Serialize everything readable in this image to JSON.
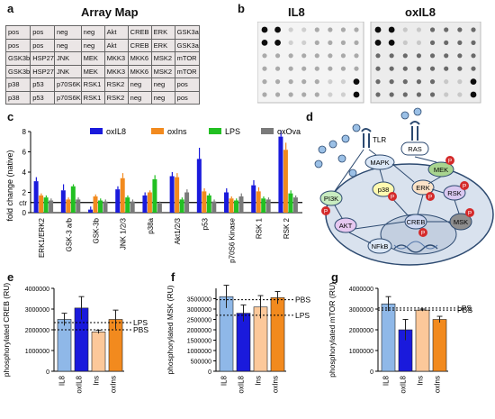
{
  "panels": {
    "a": "a",
    "b": "b",
    "c": "c",
    "d": "d",
    "e": "e",
    "f": "f",
    "g": "g"
  },
  "array_map": {
    "title": "Array Map",
    "rows": [
      [
        "pos",
        "pos",
        "neg",
        "neg",
        "Akt",
        "CREB",
        "ERK",
        "GSK3a"
      ],
      [
        "pos",
        "pos",
        "neg",
        "neg",
        "Akt",
        "CREB",
        "ERK",
        "GSK3a"
      ],
      [
        "GSK3b",
        "HSP27",
        "JNK",
        "MEK",
        "MKK3",
        "MKK6",
        "MSK2",
        "mTOR"
      ],
      [
        "GSK3b",
        "HSP27",
        "JNK",
        "MEK",
        "MKK3",
        "MKK6",
        "MSK2",
        "mTOR"
      ],
      [
        "p38",
        "p53",
        "p70S6K",
        "RSK1",
        "RSK2",
        "neg",
        "neg",
        "pos"
      ],
      [
        "p38",
        "p53",
        "p70S6K",
        "RSK1",
        "RSK2",
        "neg",
        "neg",
        "pos"
      ]
    ]
  },
  "blots": {
    "left_title": "IL8",
    "right_title": "oxIL8"
  },
  "pathway": {
    "nodes": [
      "TLR",
      "RAS",
      "MAPK",
      "MEK",
      "p38",
      "ERK",
      "RSK",
      "PI3K",
      "AKT",
      "CREB",
      "MSK",
      "NFkB"
    ],
    "phospho": "P"
  },
  "colors": {
    "oxIL8": "#1a1adc",
    "oxIns": "#f28a1e",
    "LPS": "#22c022",
    "oxOva": "#7a7a7a",
    "IL8_light": "#8fb8e8",
    "Ins_light": "#fcc89a"
  },
  "chart_data": [
    {
      "type": "bar",
      "ylabel": "fold change (native)",
      "ylim": [
        0,
        8
      ],
      "yticks": [
        "0",
        "2",
        "4",
        "6",
        "8"
      ],
      "ref_label": "ctr",
      "ref_value": 1,
      "categories": [
        "ERK1/ERK2",
        "GSK-3 a/b",
        "GSK-3b",
        "JNK 1/2/3",
        "p38a",
        "Akt1/2/3",
        "p53",
        "p70S6 Kinase",
        "RSK 1",
        "RSK 2"
      ],
      "series": [
        {
          "name": "oxIL8",
          "values": [
            3.1,
            2.2,
            0.3,
            2.3,
            1.7,
            3.6,
            5.3,
            2.0,
            2.7,
            7.5
          ],
          "errors": [
            0.4,
            0.6,
            0.3,
            0.3,
            0.3,
            0.4,
            1.1,
            0.4,
            0.5,
            0.6
          ]
        },
        {
          "name": "oxIns",
          "values": [
            1.7,
            1.3,
            1.6,
            3.4,
            2.0,
            3.5,
            2.1,
            1.4,
            2.1,
            6.2
          ],
          "errors": [
            0.2,
            0.2,
            0.2,
            0.5,
            0.2,
            0.4,
            0.3,
            0.2,
            0.4,
            0.7
          ]
        },
        {
          "name": "LPS",
          "values": [
            1.5,
            2.6,
            1.2,
            1.5,
            3.3,
            1.3,
            1.7,
            1.2,
            1.4,
            1.9
          ],
          "errors": [
            0.2,
            0.2,
            0.2,
            0.2,
            0.4,
            0.2,
            0.2,
            0.2,
            0.2,
            0.3
          ]
        },
        {
          "name": "oxOva",
          "values": [
            1.2,
            1.3,
            1.1,
            1.1,
            0.9,
            2.0,
            1.1,
            1.6,
            1.3,
            1.5
          ],
          "errors": [
            0.2,
            0.2,
            0.2,
            0.2,
            0.2,
            0.3,
            0.2,
            0.3,
            0.2,
            0.2
          ]
        }
      ]
    },
    {
      "type": "bar",
      "ylabel": "phosphorylated CREB (RU)",
      "ylim": [
        0,
        4000000
      ],
      "yticks": [
        "0",
        "1000000",
        "2000000",
        "3000000",
        "4000000"
      ],
      "categories": [
        "IL8",
        "oxIL8",
        "Ins",
        "oxIns"
      ],
      "values": [
        2500000,
        3050000,
        1900000,
        2500000
      ],
      "errors": [
        300000,
        550000,
        80000,
        450000
      ],
      "ref_lines": [
        {
          "label": "LPS",
          "value": 2350000
        },
        {
          "label": "PBS",
          "value": 2000000
        }
      ]
    },
    {
      "type": "bar",
      "ylabel": "phosphorylated MSK (RU)",
      "ylim": [
        0,
        4000000
      ],
      "yticks": [
        "0",
        "500000",
        "1000000",
        "1500000",
        "2000000",
        "2500000",
        "3000000",
        "3500000"
      ],
      "categories": [
        "IL8",
        "oxIL8",
        "Ins",
        "oxIns"
      ],
      "values": [
        3600000,
        2800000,
        3100000,
        3550000
      ],
      "errors": [
        550000,
        400000,
        550000,
        300000
      ],
      "ref_lines": [
        {
          "label": "PBS",
          "value": 3450000
        },
        {
          "label": "LPS",
          "value": 2700000
        }
      ]
    },
    {
      "type": "bar",
      "ylabel": "phosphorylated mTOR (RU)",
      "ylim": [
        0,
        4000000
      ],
      "yticks": [
        "0",
        "1000000",
        "2000000",
        "3000000",
        "4000000"
      ],
      "categories": [
        "IL8",
        "oxIL8",
        "Ins",
        "oxIns"
      ],
      "values": [
        3250000,
        2000000,
        2950000,
        2500000
      ],
      "errors": [
        350000,
        500000,
        50000,
        150000
      ],
      "ref_lines": [
        {
          "label": "LPS",
          "value": 3050000
        },
        {
          "label": "PBS",
          "value": 2950000
        }
      ]
    }
  ]
}
